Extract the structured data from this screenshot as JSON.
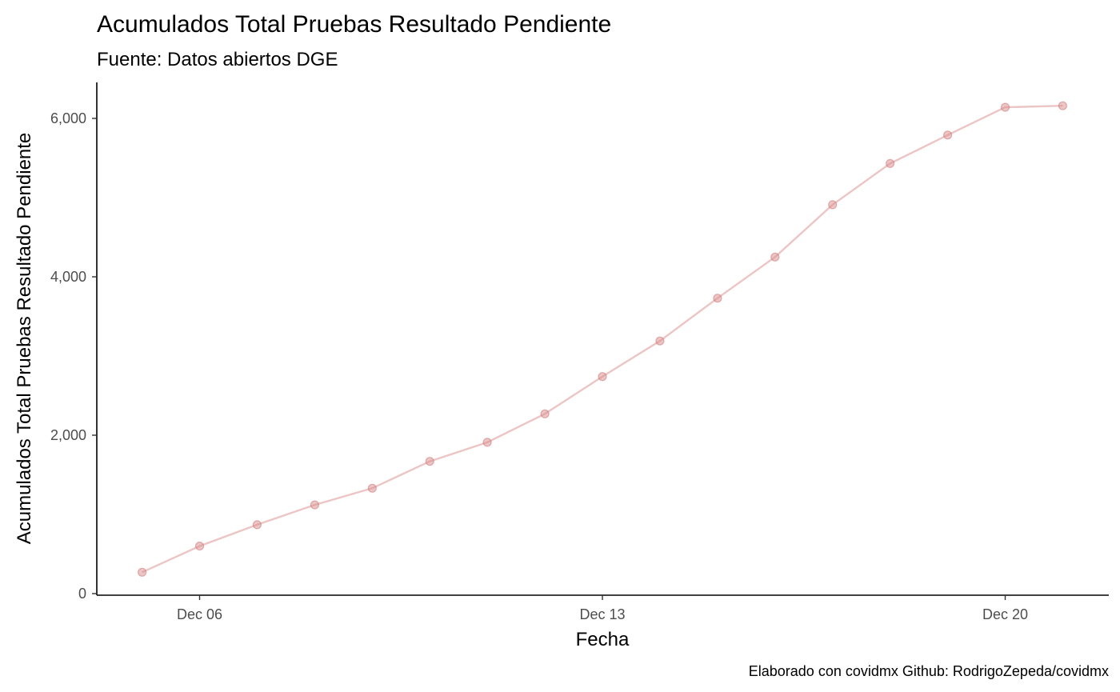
{
  "chart_data": {
    "type": "line",
    "title": "Acumulados Total Pruebas Resultado Pendiente",
    "subtitle": "Fuente: Datos abiertos DGE",
    "xlabel": "Fecha",
    "ylabel": "Acumulados Total Pruebas Resultado Pendiente",
    "caption": "Elaborado con covidmx Github: RodrigoZepeda/covidmx",
    "x_ticks": [
      "Dec 06",
      "Dec 13",
      "Dec 20"
    ],
    "y_ticks": [
      "0",
      "2,000",
      "4,000",
      "6,000"
    ],
    "ylim": [
      0,
      6000
    ],
    "grid": false,
    "series": [
      {
        "color": "#d98b8b",
        "x": [
          "2021-12-05",
          "2021-12-06",
          "2021-12-07",
          "2021-12-08",
          "2021-12-09",
          "2021-12-10",
          "2021-12-11",
          "2021-12-12",
          "2021-12-13",
          "2021-12-14",
          "2021-12-15",
          "2021-12-16",
          "2021-12-17",
          "2021-12-18",
          "2021-12-19",
          "2021-12-20",
          "2021-12-21"
        ],
        "values": [
          270,
          600,
          870,
          1120,
          1330,
          1670,
          1910,
          2270,
          2740,
          3190,
          3730,
          4250,
          4910,
          5430,
          5790,
          6140,
          6160
        ]
      }
    ]
  }
}
